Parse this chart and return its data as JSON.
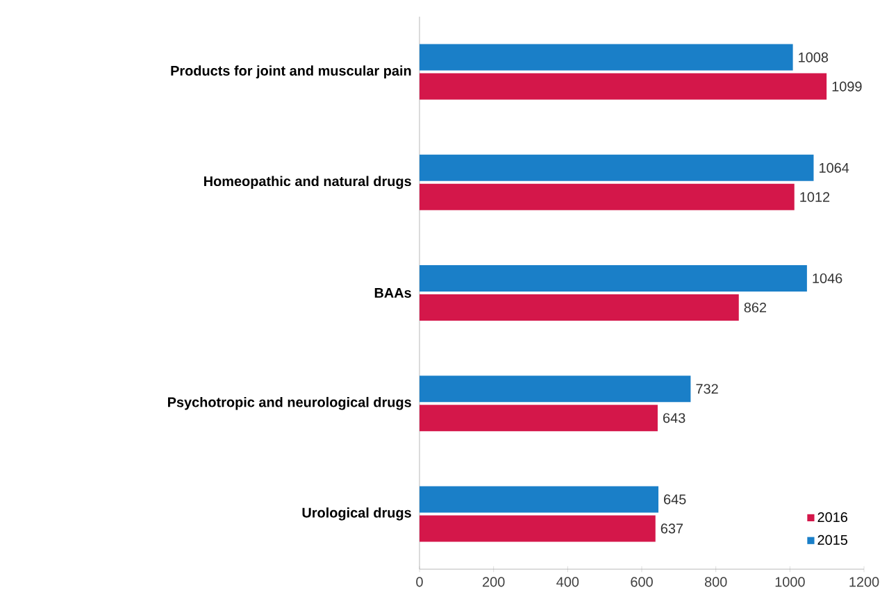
{
  "chart_data": {
    "type": "bar",
    "orientation": "horizontal",
    "categories": [
      "Products for joint and muscular pain",
      "Homeopathic and natural drugs",
      "BAAs",
      "Psychotropic and neurological drugs",
      "Urological drugs"
    ],
    "series": [
      {
        "name": "2016",
        "color": "#d4174a",
        "values": [
          1099,
          1012,
          862,
          643,
          637
        ]
      },
      {
        "name": "2015",
        "color": "#1a7fc8",
        "values": [
          1008,
          1064,
          1046,
          732,
          645
        ]
      }
    ],
    "xlim": [
      0,
      1200
    ],
    "xticks": [
      0,
      200,
      400,
      600,
      800,
      1000,
      1200
    ],
    "data_labels": true,
    "legend": "bottom right",
    "grid": false
  }
}
